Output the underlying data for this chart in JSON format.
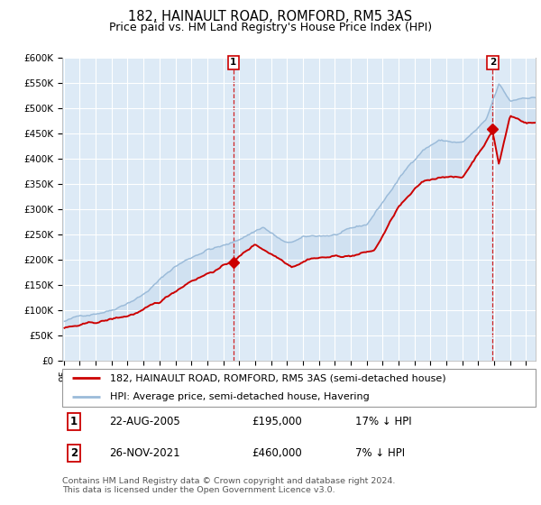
{
  "title": "182, HAINAULT ROAD, ROMFORD, RM5 3AS",
  "subtitle": "Price paid vs. HM Land Registry's House Price Index (HPI)",
  "ylim": [
    0,
    600000
  ],
  "yticks": [
    0,
    50000,
    100000,
    150000,
    200000,
    250000,
    300000,
    350000,
    400000,
    450000,
    500000,
    550000,
    600000
  ],
  "ytick_labels": [
    "£0",
    "£50K",
    "£100K",
    "£150K",
    "£200K",
    "£250K",
    "£300K",
    "£350K",
    "£400K",
    "£450K",
    "£500K",
    "£550K",
    "£600K"
  ],
  "hpi_color": "#9bbbd9",
  "hpi_fill_color": "#c5d9ee",
  "price_color": "#cc0000",
  "marker_color": "#cc0000",
  "bg_color": "#ddeaf6",
  "grid_color": "#ffffff",
  "legend_label_price": "182, HAINAULT ROAD, ROMFORD, RM5 3AS (semi-detached house)",
  "legend_label_hpi": "HPI: Average price, semi-detached house, Havering",
  "sale1_price": 195000,
  "sale1_yr": 2005.64,
  "sale2_price": 460000,
  "sale2_yr": 2021.9,
  "footnote1": "Contains HM Land Registry data © Crown copyright and database right 2024.",
  "footnote2": "This data is licensed under the Open Government Licence v3.0.",
  "title_fontsize": 10.5,
  "subtitle_fontsize": 9,
  "tick_fontsize": 7.5,
  "legend_fontsize": 8,
  "table_fontsize": 8.5,
  "footnote_fontsize": 6.8
}
